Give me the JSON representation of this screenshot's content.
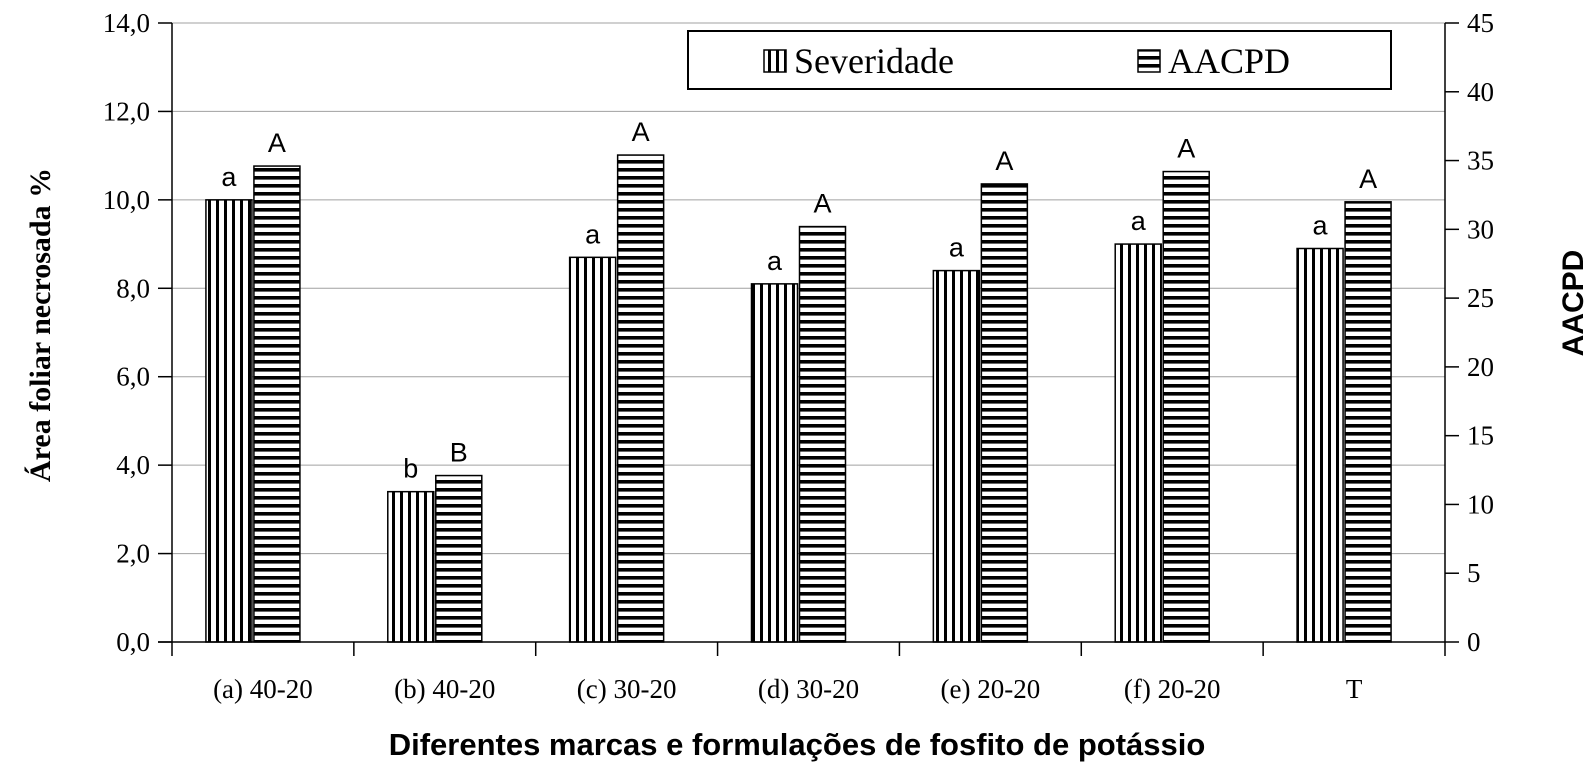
{
  "chart_data": {
    "type": "bar",
    "categories": [
      "(a) 40-20",
      "(b) 40-20",
      "(c) 30-20",
      "(d) 30-20",
      "(e) 20-20",
      "(f) 20-20",
      "T"
    ],
    "series": [
      {
        "name": "Severidade",
        "axis": "left",
        "values": [
          10.0,
          3.4,
          8.7,
          8.1,
          8.4,
          9.0,
          8.9
        ],
        "letters": [
          "a",
          "b",
          "a",
          "a",
          "a",
          "a",
          "a"
        ],
        "pattern": "vertical-stripes"
      },
      {
        "name": "AACPD",
        "axis": "right",
        "values": [
          34.6,
          12.1,
          35.4,
          30.2,
          33.3,
          34.2,
          32.0
        ],
        "letters": [
          "A",
          "B",
          "A",
          "A",
          "A",
          "A",
          "A"
        ],
        "pattern": "horizontal-stripes"
      }
    ],
    "title": "",
    "xlabel": "Diferentes marcas e formulações de fosfito de potássio",
    "ylabel": "Área foliar necrosada %",
    "y2label": "AACPD",
    "ylim": [
      0,
      14
    ],
    "y2lim": [
      0,
      45
    ],
    "yticks": [
      "0,0",
      "2,0",
      "4,0",
      "6,0",
      "8,0",
      "10,0",
      "12,0",
      "14,0"
    ],
    "y2ticks": [
      "0",
      "5",
      "10",
      "15",
      "20",
      "25",
      "30",
      "35",
      "40",
      "45"
    ],
    "grid": true,
    "legend_position": "top-right",
    "colors": {
      "bar_fill": "#ffffff",
      "stroke": "#000000",
      "grid": "#a0a0a0"
    }
  }
}
